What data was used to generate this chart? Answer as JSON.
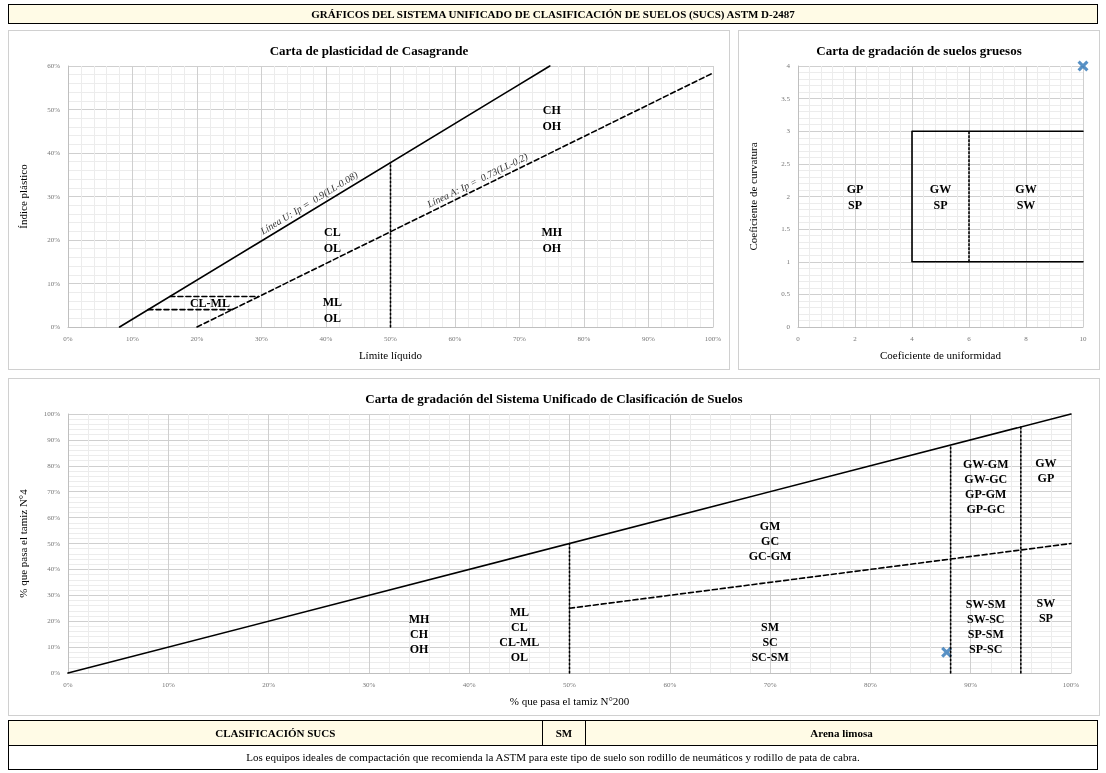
{
  "chart_data": [
    {
      "type": "other",
      "title": "GRÁFICOS DEL SISTEMA UNIFICADO DE CLASIFICACIÓN DE SUELOS (SUCS) ASTM D-2487"
    },
    {
      "type": "line",
      "title": "Carta de plasticidad de Casagrande",
      "xlabel": "Límite líquido",
      "ylabel": "Índice plástico",
      "xlim": [
        0,
        100
      ],
      "ylim": [
        0,
        60
      ],
      "xticks": [
        {
          "value": 0,
          "label": "0%"
        },
        {
          "value": 10,
          "label": "10%"
        },
        {
          "value": 20,
          "label": "20%"
        },
        {
          "value": 30,
          "label": "30%"
        },
        {
          "value": 40,
          "label": "40%"
        },
        {
          "value": 50,
          "label": "50%"
        },
        {
          "value": 60,
          "label": "60%"
        },
        {
          "value": 70,
          "label": "70%"
        },
        {
          "value": 80,
          "label": "80%"
        },
        {
          "value": 90,
          "label": "90%"
        },
        {
          "value": 100,
          "label": "100%"
        }
      ],
      "yticks": [
        {
          "value": 0,
          "label": "0%"
        },
        {
          "value": 10,
          "label": "10%"
        },
        {
          "value": 20,
          "label": "20%"
        },
        {
          "value": 30,
          "label": "30%"
        },
        {
          "value": 40,
          "label": "40%"
        },
        {
          "value": 50,
          "label": "50%"
        },
        {
          "value": 60,
          "label": "60%"
        }
      ],
      "grid": true,
      "marker": "none",
      "series": [
        {
          "color": "#000000",
          "line_style": "solid",
          "x": [
            8,
            74.7
          ],
          "values": [
            0,
            60
          ]
        },
        {
          "color": "#000000",
          "line_style": "dashed",
          "x": [
            20,
            100
          ],
          "values": [
            0,
            58.4
          ]
        },
        {
          "color": "#000000",
          "line_style": "dashed",
          "x": [
            15.8,
            29.6
          ],
          "values": [
            7,
            7
          ]
        },
        {
          "color": "#000000",
          "line_style": "dashed",
          "x": [
            12.4,
            25.5
          ],
          "values": [
            4,
            4
          ]
        },
        {
          "color": "#000000",
          "line_style": "dotted",
          "x": [
            50,
            50
          ],
          "values": [
            0,
            37.8
          ]
        }
      ],
      "annotations": [
        {
          "text": "Línea U: Ip =  0.9(LL-0.08)",
          "x": 38,
          "y": 27
        },
        {
          "text": "Línea A: Ip =  0.73(LL-0.2)",
          "x": 64,
          "y": 32.1
        },
        "CH\nOH",
        "CL\nOL",
        "MH\nOH",
        "ML\nOL",
        "CL-ML"
      ]
    },
    {
      "type": "line",
      "title": "Carta de gradación de suelos gruesos",
      "xlabel": "Coeficiente de uniformidad",
      "ylabel": "Coeficiente de curvatura",
      "xlim": [
        0,
        10
      ],
      "ylim": [
        0,
        4
      ],
      "xticks": [
        0,
        2,
        4,
        6,
        8,
        10
      ],
      "yticks": [
        0,
        0.5,
        1,
        1.5,
        2,
        2.5,
        3,
        3.5,
        4
      ],
      "grid": true,
      "marker": "none",
      "series": [
        {
          "color": "#000000",
          "line_style": "solid",
          "x": [
            10,
            4,
            4,
            10
          ],
          "values": [
            3,
            3,
            1,
            1
          ]
        },
        {
          "color": "#000000",
          "line_style": "dotted",
          "x": [
            6,
            6
          ],
          "values": [
            1,
            3
          ]
        },
        {
          "type": "scatter",
          "marker": "cross",
          "color": "#2e75b6",
          "x": [
            10
          ],
          "values": [
            4
          ]
        }
      ],
      "annotations": [
        "GP\nSP",
        "GW\nSP",
        "GW\nSW"
      ]
    },
    {
      "type": "line",
      "title": "Carta de gradación del Sistema Unificado de Clasificación de Suelos",
      "xlabel": "% que pasa el tamiz N°200",
      "ylabel": "% que pasa el tamiz N°4",
      "xlim": [
        0,
        100
      ],
      "ylim": [
        0,
        100
      ],
      "xticks": [
        {
          "value": 0,
          "label": "0%"
        },
        {
          "value": 10,
          "label": "10%"
        },
        {
          "value": 20,
          "label": "20%"
        },
        {
          "value": 30,
          "label": "30%"
        },
        {
          "value": 40,
          "label": "40%"
        },
        {
          "value": 50,
          "label": "50%"
        },
        {
          "value": 60,
          "label": "60%"
        },
        {
          "value": 70,
          "label": "70%"
        },
        {
          "value": 80,
          "label": "80%"
        },
        {
          "value": 90,
          "label": "90%"
        },
        {
          "value": 100,
          "label": "100%"
        }
      ],
      "yticks": [
        {
          "value": 0,
          "label": "0%"
        },
        {
          "value": 10,
          "label": "10%"
        },
        {
          "value": 20,
          "label": "20%"
        },
        {
          "value": 30,
          "label": "30%"
        },
        {
          "value": 40,
          "label": "40%"
        },
        {
          "value": 50,
          "label": "50%"
        },
        {
          "value": 60,
          "label": "60%"
        },
        {
          "value": 70,
          "label": "70%"
        },
        {
          "value": 80,
          "label": "80%"
        },
        {
          "value": 90,
          "label": "90%"
        },
        {
          "value": 100,
          "label": "100%"
        }
      ],
      "grid": true,
      "marker": "none",
      "series": [
        {
          "color": "#000000",
          "line_style": "solid",
          "x": [
            0,
            100
          ],
          "values": [
            0,
            100
          ]
        },
        {
          "color": "#000000",
          "line_style": "dashed",
          "x": [
            50,
            100
          ],
          "values": [
            25,
            50
          ]
        },
        {
          "color": "#000000",
          "line_style": "dotted",
          "x": [
            50,
            50
          ],
          "values": [
            0,
            50
          ]
        },
        {
          "color": "#000000",
          "line_style": "dotted",
          "x": [
            88,
            88
          ],
          "values": [
            0,
            88
          ]
        },
        {
          "color": "#000000",
          "line_style": "dotted",
          "x": [
            95,
            95
          ],
          "values": [
            0,
            95
          ]
        },
        {
          "type": "scatter",
          "marker": "cross",
          "color": "#2e75b6",
          "x": [
            87.6
          ],
          "values": [
            8
          ]
        }
      ],
      "annotations": [
        "MH\nCH\nOH",
        "ML\nCL\nCL-ML\nOL",
        "GM\nGC\nGC-GM",
        "SM\nSC\nSC-SM",
        "GW-GM\nGW-GC\nGP-GM\nGP-GC",
        "GW\nGP",
        "SW-SM\nSW-SC\nSP-SM\nSP-SC",
        "SW\nSP"
      ]
    },
    {
      "type": "other",
      "annotations": [
        "CLASIFICACIÓN SUCS",
        "SM",
        "Arena limosa",
        "Los equipos ideales de compactación que recomienda la ASTM para este tipo de suelo son rodillo de neumáticos y rodillo de pata de cabra."
      ]
    }
  ]
}
